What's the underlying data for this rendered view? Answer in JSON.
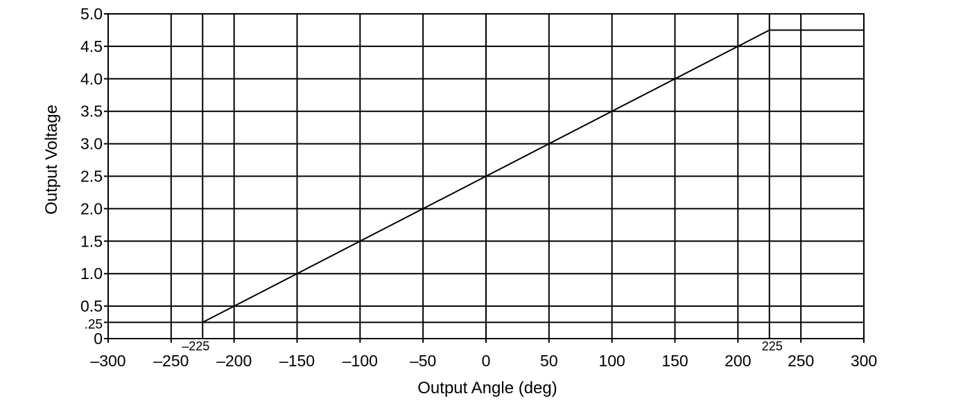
{
  "chart_data": {
    "type": "line",
    "title": "",
    "xlabel": "Output Angle (deg)",
    "ylabel": "Output Voltage",
    "xlim": [
      -300,
      300
    ],
    "ylim": [
      0,
      5.0
    ],
    "grid": true,
    "x_ticks": [
      {
        "value": -300,
        "label": "–300"
      },
      {
        "value": -250,
        "label": "–250"
      },
      {
        "value": -200,
        "label": "–200"
      },
      {
        "value": -150,
        "label": "–150"
      },
      {
        "value": -100,
        "label": "–100"
      },
      {
        "value": -50,
        "label": "–50"
      },
      {
        "value": 0,
        "label": "0"
      },
      {
        "value": 50,
        "label": "50"
      },
      {
        "value": 100,
        "label": "100"
      },
      {
        "value": 150,
        "label": "150"
      },
      {
        "value": 200,
        "label": "200"
      },
      {
        "value": 250,
        "label": "250"
      },
      {
        "value": 300,
        "label": "300"
      }
    ],
    "y_ticks": [
      {
        "value": 0,
        "label": "0"
      },
      {
        "value": 0.25,
        "label": ".25"
      },
      {
        "value": 0.5,
        "label": "0.5"
      },
      {
        "value": 1.0,
        "label": "1.0"
      },
      {
        "value": 1.5,
        "label": "1.5"
      },
      {
        "value": 2.0,
        "label": "2.0"
      },
      {
        "value": 2.5,
        "label": "2.5"
      },
      {
        "value": 3.0,
        "label": "3.0"
      },
      {
        "value": 3.5,
        "label": "3.5"
      },
      {
        "value": 4.0,
        "label": "4.0"
      },
      {
        "value": 4.5,
        "label": "4.5"
      },
      {
        "value": 5.0,
        "label": "5.0"
      }
    ],
    "extra_grid_x": [
      -225,
      225
    ],
    "series": [
      {
        "x": [
          -300,
          -225,
          225,
          300
        ],
        "y": [
          0.25,
          0.25,
          4.75,
          4.75
        ]
      }
    ],
    "annotations": [
      {
        "label": "–225",
        "x": -225
      },
      {
        "label": "225",
        "x": 225
      }
    ]
  }
}
